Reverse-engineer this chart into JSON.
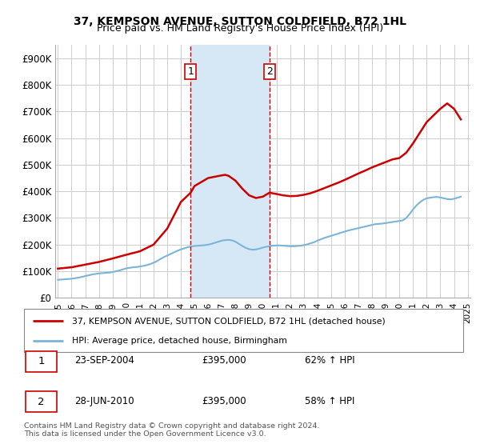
{
  "title": "37, KEMPSON AVENUE, SUTTON COLDFIELD, B72 1HL",
  "subtitle": "Price paid vs. HM Land Registry's House Price Index (HPI)",
  "legend_line1": "37, KEMPSON AVENUE, SUTTON COLDFIELD, B72 1HL (detached house)",
  "legend_line2": "HPI: Average price, detached house, Birmingham",
  "footer": "Contains HM Land Registry data © Crown copyright and database right 2024.\nThis data is licensed under the Open Government Licence v3.0.",
  "transaction1_date": "23-SEP-2004",
  "transaction1_price": "£395,000",
  "transaction1_pct": "62% ↑ HPI",
  "transaction2_date": "28-JUN-2010",
  "transaction2_price": "£395,000",
  "transaction2_pct": "58% ↑ HPI",
  "marker1_x": 2004.72,
  "marker2_x": 2010.49,
  "hpi_color": "#7ab4d8",
  "price_color": "#cc0000",
  "shade_color": "#d6e8f5",
  "vline_color": "#cc0000",
  "background_color": "#ffffff",
  "grid_color": "#cccccc",
  "hpi_data_x": [
    1995.0,
    1995.25,
    1995.5,
    1995.75,
    1996.0,
    1996.25,
    1996.5,
    1996.75,
    1997.0,
    1997.25,
    1997.5,
    1997.75,
    1998.0,
    1998.25,
    1998.5,
    1998.75,
    1999.0,
    1999.25,
    1999.5,
    1999.75,
    2000.0,
    2000.25,
    2000.5,
    2000.75,
    2001.0,
    2001.25,
    2001.5,
    2001.75,
    2002.0,
    2002.25,
    2002.5,
    2002.75,
    2003.0,
    2003.25,
    2003.5,
    2003.75,
    2004.0,
    2004.25,
    2004.5,
    2004.75,
    2005.0,
    2005.25,
    2005.5,
    2005.75,
    2006.0,
    2006.25,
    2006.5,
    2006.75,
    2007.0,
    2007.25,
    2007.5,
    2007.75,
    2008.0,
    2008.25,
    2008.5,
    2008.75,
    2009.0,
    2009.25,
    2009.5,
    2009.75,
    2010.0,
    2010.25,
    2010.5,
    2010.75,
    2011.0,
    2011.25,
    2011.5,
    2011.75,
    2012.0,
    2012.25,
    2012.5,
    2012.75,
    2013.0,
    2013.25,
    2013.5,
    2013.75,
    2014.0,
    2014.25,
    2014.5,
    2014.75,
    2015.0,
    2015.25,
    2015.5,
    2015.75,
    2016.0,
    2016.25,
    2016.5,
    2016.75,
    2017.0,
    2017.25,
    2017.5,
    2017.75,
    2018.0,
    2018.25,
    2018.5,
    2018.75,
    2019.0,
    2019.25,
    2019.5,
    2019.75,
    2020.0,
    2020.25,
    2020.5,
    2020.75,
    2021.0,
    2021.25,
    2021.5,
    2021.75,
    2022.0,
    2022.25,
    2022.5,
    2022.75,
    2023.0,
    2023.25,
    2023.5,
    2023.75,
    2024.0,
    2024.25,
    2024.5
  ],
  "hpi_data_y": [
    68000,
    69000,
    70000,
    71000,
    72000,
    74000,
    76000,
    79000,
    82000,
    85000,
    88000,
    90000,
    92000,
    93000,
    94000,
    95000,
    97000,
    100000,
    103000,
    107000,
    111000,
    113000,
    115000,
    116000,
    118000,
    120000,
    123000,
    127000,
    132000,
    138000,
    146000,
    153000,
    159000,
    165000,
    171000,
    177000,
    182000,
    186000,
    190000,
    193000,
    195000,
    196000,
    197000,
    198000,
    200000,
    203000,
    207000,
    211000,
    215000,
    217000,
    218000,
    216000,
    211000,
    203000,
    195000,
    188000,
    183000,
    181000,
    182000,
    185000,
    189000,
    192000,
    194000,
    196000,
    197000,
    197000,
    196000,
    195000,
    194000,
    194000,
    195000,
    196000,
    198000,
    201000,
    205000,
    209000,
    215000,
    220000,
    225000,
    229000,
    233000,
    237000,
    241000,
    245000,
    249000,
    253000,
    256000,
    259000,
    262000,
    265000,
    268000,
    271000,
    274000,
    277000,
    278000,
    279000,
    281000,
    283000,
    285000,
    287000,
    289000,
    291000,
    300000,
    315000,
    332000,
    347000,
    359000,
    368000,
    374000,
    376000,
    378000,
    379000,
    377000,
    374000,
    371000,
    370000,
    372000,
    376000,
    380000
  ],
  "price_data_x": [
    1995.0,
    1996.0,
    1997.0,
    1998.0,
    1999.0,
    2000.0,
    2001.0,
    2002.0,
    2003.0,
    2003.5,
    2004.0,
    2004.72,
    2005.0,
    2005.5,
    2006.0,
    2006.5,
    2007.0,
    2007.25,
    2007.5,
    2008.0,
    2008.5,
    2009.0,
    2009.5,
    2010.0,
    2010.49,
    2011.0,
    2011.5,
    2012.0,
    2012.5,
    2013.0,
    2013.5,
    2014.0,
    2014.5,
    2015.0,
    2015.5,
    2016.0,
    2016.5,
    2017.0,
    2017.5,
    2018.0,
    2018.5,
    2019.0,
    2019.5,
    2020.0,
    2020.5,
    2021.0,
    2021.5,
    2022.0,
    2022.5,
    2023.0,
    2023.25,
    2023.5,
    2023.75,
    2024.0,
    2024.25,
    2024.5
  ],
  "price_data_y": [
    110000,
    115000,
    125000,
    135000,
    148000,
    162000,
    175000,
    200000,
    260000,
    310000,
    360000,
    395000,
    420000,
    435000,
    450000,
    455000,
    460000,
    462000,
    458000,
    440000,
    410000,
    385000,
    375000,
    380000,
    395000,
    390000,
    385000,
    382000,
    383000,
    387000,
    393000,
    402000,
    412000,
    422000,
    432000,
    443000,
    455000,
    467000,
    478000,
    490000,
    500000,
    510000,
    520000,
    525000,
    545000,
    580000,
    620000,
    660000,
    685000,
    710000,
    720000,
    730000,
    720000,
    710000,
    690000,
    670000
  ],
  "xlim": [
    1994.8,
    2025.2
  ],
  "ylim": [
    0,
    950000
  ],
  "yticks": [
    0,
    100000,
    200000,
    300000,
    400000,
    500000,
    600000,
    700000,
    800000,
    900000
  ],
  "ytick_labels": [
    "£0",
    "£100K",
    "£200K",
    "£300K",
    "£400K",
    "£500K",
    "£600K",
    "£700K",
    "£800K",
    "£900K"
  ],
  "xticks": [
    1995,
    1996,
    1997,
    1998,
    1999,
    2000,
    2001,
    2002,
    2003,
    2004,
    2005,
    2006,
    2007,
    2008,
    2009,
    2010,
    2011,
    2012,
    2013,
    2014,
    2015,
    2016,
    2017,
    2018,
    2019,
    2020,
    2021,
    2022,
    2023,
    2024,
    2025
  ]
}
